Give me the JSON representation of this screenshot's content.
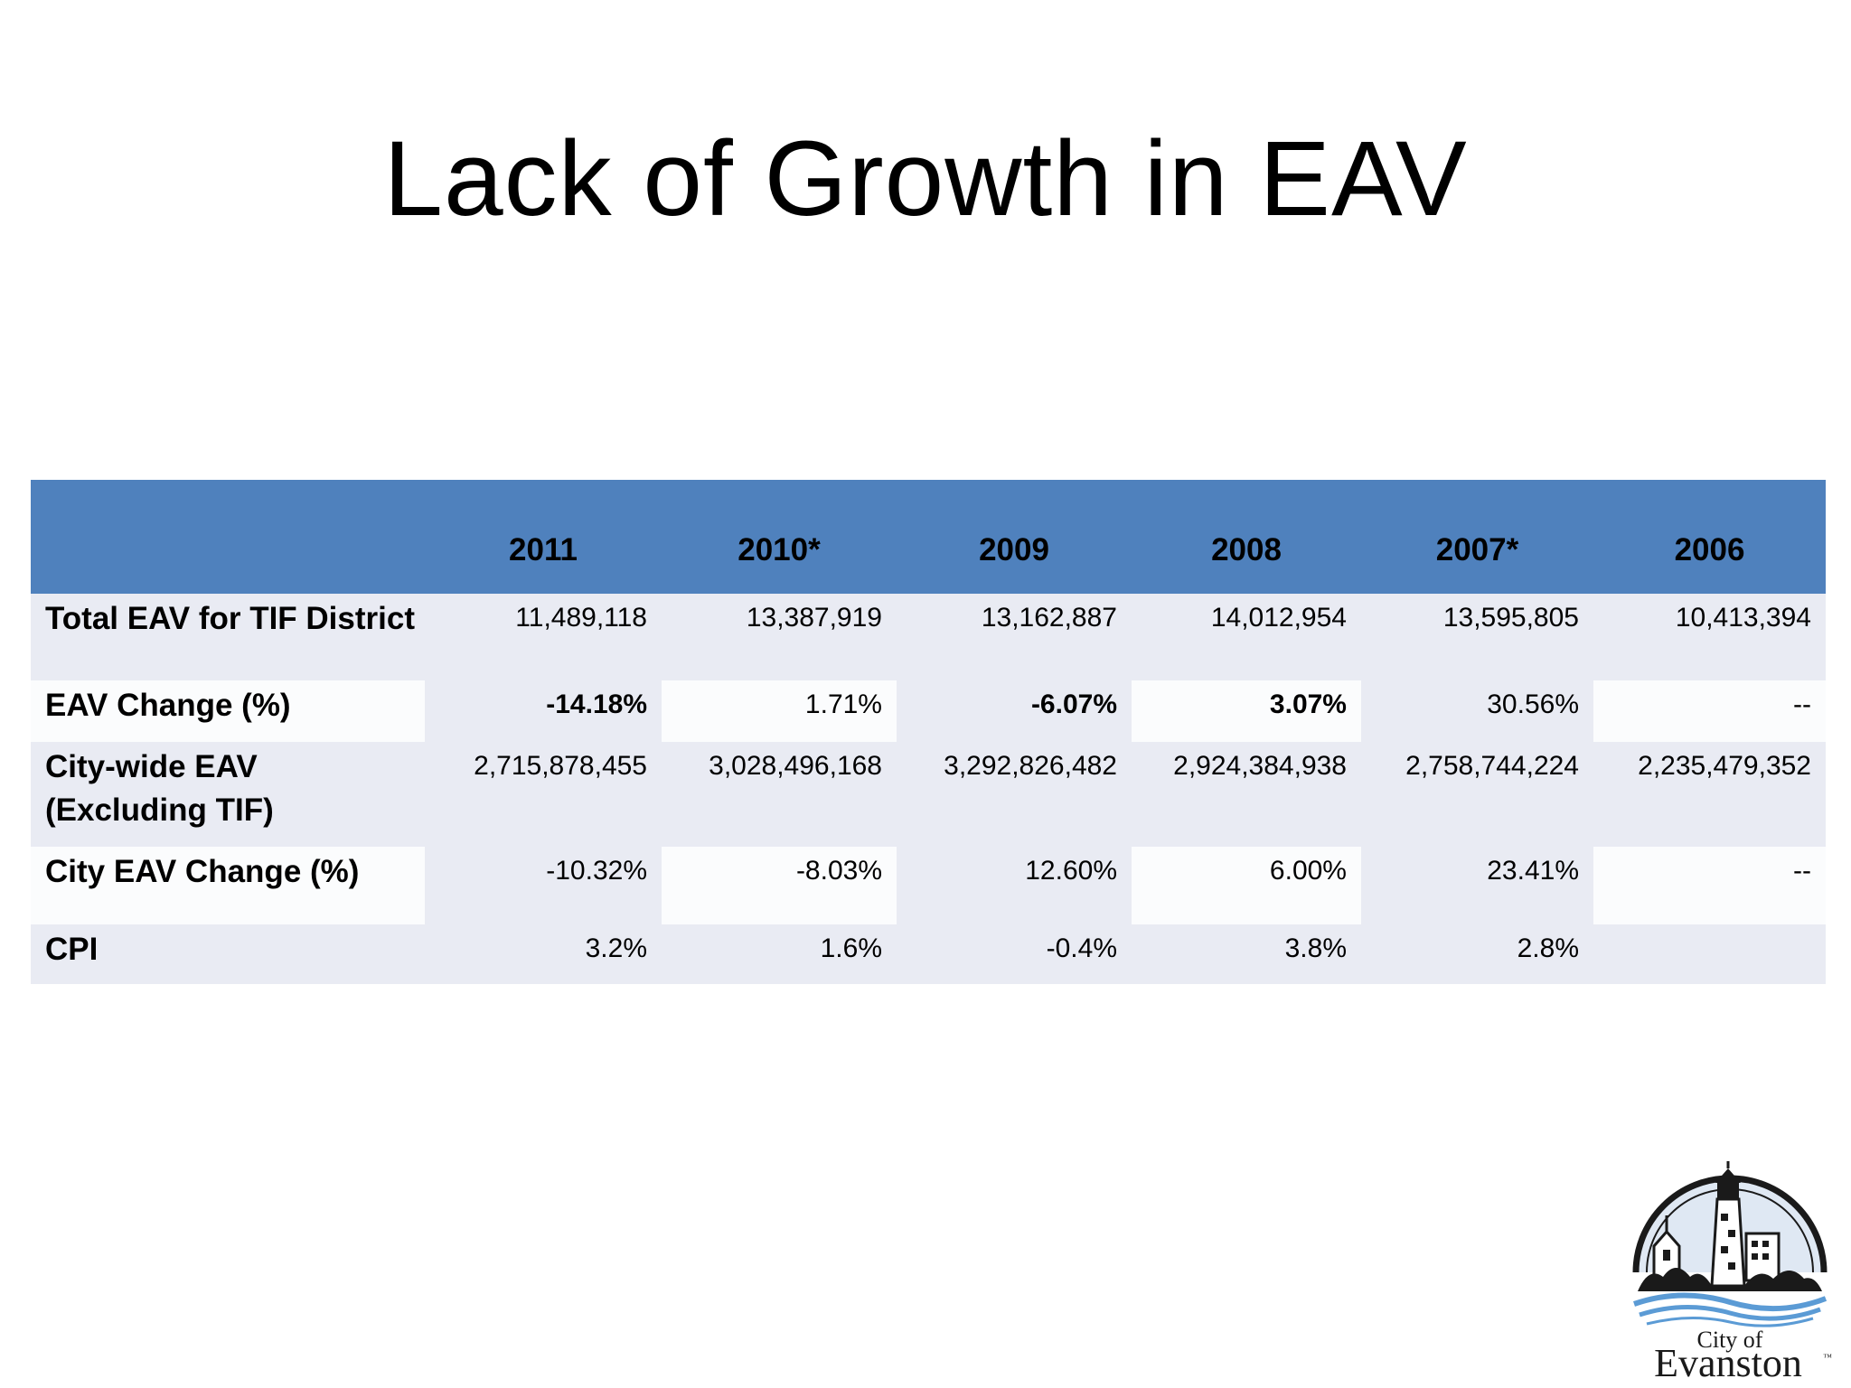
{
  "slide": {
    "title": "Lack of Growth in EAV"
  },
  "table": {
    "headers": [
      "",
      "2011",
      "2010*",
      "2009",
      "2008",
      "2007*",
      "2006"
    ],
    "rows": [
      {
        "label": "Total EAV for TIF District",
        "values": [
          "11,489,118",
          "13,387,919",
          "13,162,887",
          "14,012,954",
          "13,595,805",
          "10,413,394"
        ]
      },
      {
        "label": "EAV Change (%)",
        "values": [
          "-14.18%",
          "1.71%",
          "-6.07%",
          "3.07%",
          "30.56%",
          "--"
        ]
      },
      {
        "label": "City-wide EAV (Excluding TIF)",
        "values": [
          "2,715,878,455",
          "3,028,496,168",
          "3,292,826,482",
          "2,924,384,938",
          "2,758,744,224",
          "2,235,479,352"
        ]
      },
      {
        "label": "City EAV Change (%)",
        "values": [
          "-10.32%",
          "-8.03%",
          "12.60%",
          "6.00%",
          "23.41%",
          "--"
        ]
      },
      {
        "label": "CPI",
        "values": [
          "3.2%",
          "1.6%",
          "-0.4%",
          "3.8%",
          "2.8%",
          ""
        ]
      }
    ]
  },
  "logo": {
    "line1": "City of",
    "line2": "Evanston",
    "trademark": "™"
  },
  "colors": {
    "header_fill": "#4f81bd",
    "row_fill": "#e9ebf3",
    "row_alt_fill": "#fbfcfd"
  }
}
